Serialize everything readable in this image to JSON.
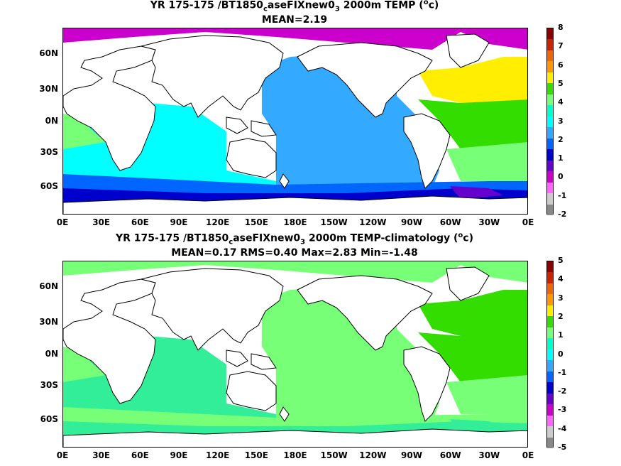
{
  "panels": [
    {
      "title_parts": {
        "a": "YR 175-175 /BT1850",
        "b": "c",
        "c": "aseFIXnew0",
        "d": "3",
        "e": " 2000m TEMP (",
        "f": "o",
        "g": "c)"
      },
      "stats": "MEAN=2.19",
      "colorbar_labels": [
        "8",
        "7",
        "6",
        "5",
        "4",
        "3",
        "2",
        "1",
        "0",
        "-1",
        "-2"
      ],
      "colorbar_colors": [
        "#8b0000",
        "#cc2200",
        "#ee6600",
        "#ff9900",
        "#ffee00",
        "#33dd00",
        "#77ff77",
        "#00ffcc",
        "#00ffff",
        "#33aaff",
        "#0066ff",
        "#0000cc",
        "#6600cc",
        "#cc00cc",
        "#ff66ff",
        "#cccccc",
        "#888888"
      ],
      "region_colors": {
        "pacific": "#33aaff",
        "indian": "#00ffff",
        "atlantic_n": "#ffee00",
        "atlantic_trop": "#33dd00",
        "atlantic_s": "#77ff77",
        "southern": "#0066ff",
        "deep_south": "#0000cc",
        "arctic": "#cc00cc",
        "antarctic": "#6600cc"
      }
    },
    {
      "title_parts": {
        "a": "YR 175-175 /BT1850",
        "b": "c",
        "c": "aseFIXnew0",
        "d": "3",
        "e": " 2000m TEMP-climatology (",
        "f": "o",
        "g": "c)"
      },
      "stats": "MEAN=0.17   RMS=0.40   Max=2.83   Min=-1.48",
      "colorbar_labels": [
        "5",
        "4",
        "3",
        "2",
        "1",
        "0",
        "-1",
        "-2",
        "-3",
        "-4",
        "-5"
      ],
      "colorbar_colors": [
        "#8b0000",
        "#cc2200",
        "#ee6600",
        "#ff9900",
        "#ffee00",
        "#33dd00",
        "#77ff77",
        "#00ffcc",
        "#00ffff",
        "#33aaff",
        "#0066ff",
        "#0000cc",
        "#6600cc",
        "#cc00cc",
        "#ff66ff",
        "#cccccc",
        "#888888"
      ],
      "region_colors": {
        "pacific": "#77ff77",
        "indian": "#33ee99",
        "atlantic_n": "#33dd00",
        "atlantic_trop": "#33dd00",
        "atlantic_s": "#77ff77",
        "southern": "#77ff77",
        "deep_south": "#33ee99",
        "arctic": "#77ff77",
        "antarctic": "#33ee99"
      }
    }
  ],
  "lat_labels": [
    "60N",
    "30N",
    "0N",
    "30S",
    "60S"
  ],
  "lon_labels": [
    "0E",
    "30E",
    "60E",
    "90E",
    "120E",
    "150E",
    "180E",
    "150W",
    "120W",
    "90W",
    "60W",
    "30W",
    "0E"
  ]
}
